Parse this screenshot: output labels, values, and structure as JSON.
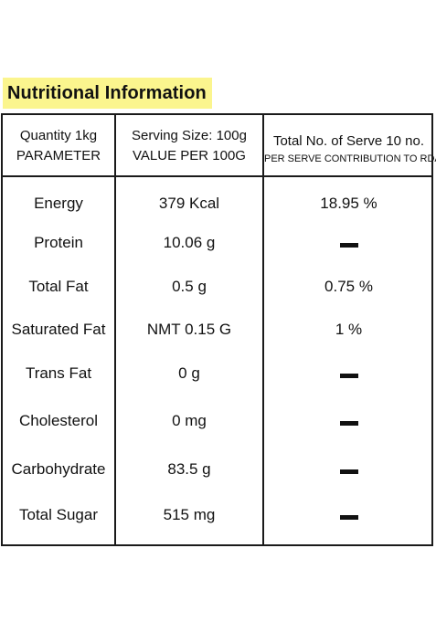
{
  "title": "Nutritional Information",
  "header": {
    "col1_line1": "Quantity 1kg",
    "col1_line2": "PARAMETER",
    "col2_line1": "Serving Size: 100g",
    "col2_line2": "VALUE PER 100G",
    "col3_line1": "Total No. of Serve 10 no.",
    "col3_line2": "PER SERVE CONTRIBUTION TO RDA"
  },
  "rows": [
    {
      "parameter": "Energy",
      "value": "379 Kcal",
      "rda": "18.95 %"
    },
    {
      "parameter": "Protein",
      "value": "10.06 g",
      "rda": "dash"
    },
    {
      "parameter": "Total Fat",
      "value": "0.5 g",
      "rda": "0.75 %"
    },
    {
      "parameter": "Saturated Fat",
      "value": "NMT 0.15 G",
      "rda": "1 %"
    },
    {
      "parameter": "Trans Fat",
      "value": "0 g",
      "rda": "dash"
    },
    {
      "parameter": "Cholesterol",
      "value": "0 mg",
      "rda": "dash"
    },
    {
      "parameter": "Carbohydrate",
      "value": "83.5 g",
      "rda": "dash"
    },
    {
      "parameter": "Total Sugar",
      "value": "515 mg",
      "rda": "dash"
    }
  ],
  "colors": {
    "title_highlight": "#fbf58e",
    "border": "#1a1a1a"
  }
}
